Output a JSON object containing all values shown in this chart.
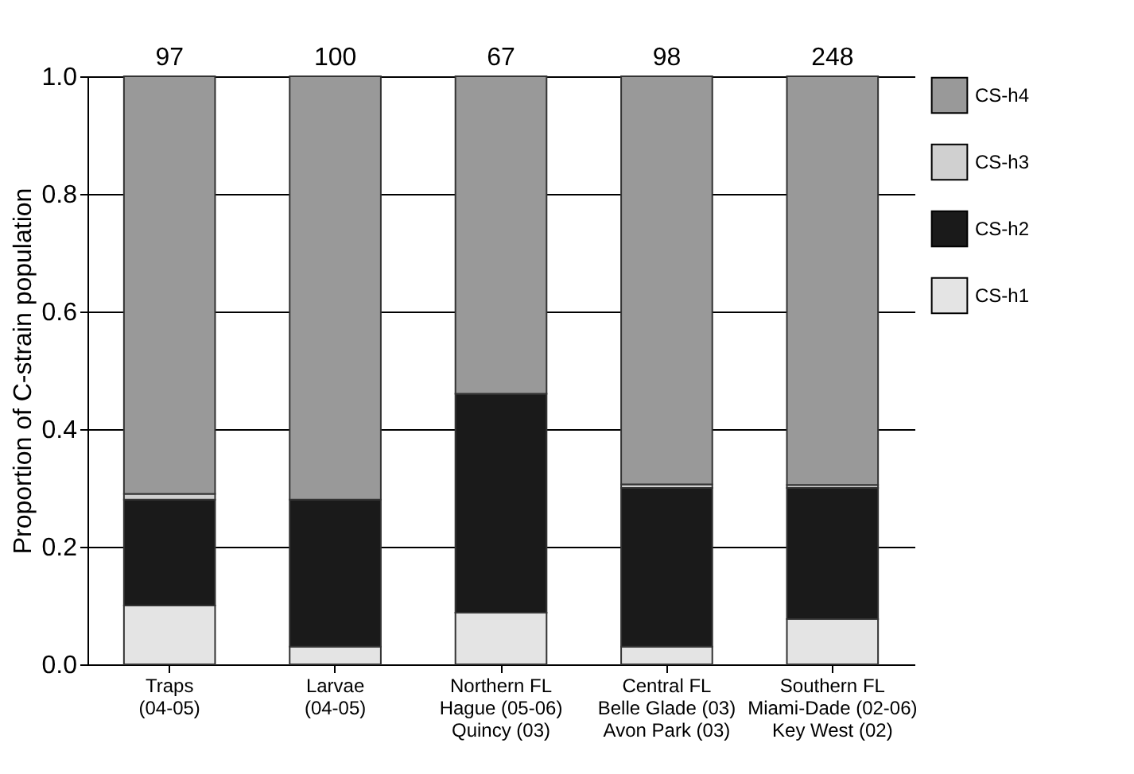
{
  "chart_data": {
    "type": "bar",
    "stacked": true,
    "ylabel": "Proportion of C-strain population",
    "categories": [
      "Traps\n(04-05)",
      "Larvae\n(04-05)",
      "Northern FL\nHague (05-06)\nQuincy (03)",
      "Central FL\nBelle Glade (03)\nAvon Park (03)",
      "Southern FL\nMiami-Dade (02-06)\nKey West (02)"
    ],
    "series": [
      {
        "name": "CS-h1",
        "color": "#e4e4e4",
        "values": [
          0.1,
          0.03,
          0.088,
          0.03,
          0.077
        ]
      },
      {
        "name": "CS-h2",
        "color": "#1a1a1a",
        "values": [
          0.18,
          0.25,
          0.372,
          0.27,
          0.223
        ]
      },
      {
        "name": "CS-h3",
        "color": "#d0d0d0",
        "values": [
          0.01,
          0,
          0,
          0.006,
          0.005
        ]
      },
      {
        "name": "CS-h4",
        "color": "#999999",
        "values": [
          0.71,
          0.72,
          0.54,
          0.694,
          0.695
        ]
      }
    ],
    "annotations": [
      {
        "text": "97",
        "x": "Traps\n(04-05)",
        "y": 1
      },
      {
        "text": "100",
        "x": "Larvae\n(04-05)",
        "y": 1
      },
      {
        "text": "67",
        "x": "Northern FL\nHague (05-06)\nQuincy (03)",
        "y": 1
      },
      {
        "text": "98",
        "x": "Central FL\nBelle Glade (03)\nAvon Park (03)",
        "y": 1
      },
      {
        "text": "248",
        "x": "Southern FL\nMiami-Dade (02-06)\nKey West (02)",
        "y": 1
      }
    ],
    "ylim": [
      0,
      1
    ],
    "yticks": [
      {
        "value": 0,
        "label": "0.0"
      },
      {
        "value": 0.2,
        "label": "0.2"
      },
      {
        "value": 0.4,
        "label": "0.4"
      },
      {
        "value": 0.6,
        "label": "0.6"
      },
      {
        "value": 0.8,
        "label": "0.8"
      },
      {
        "value": 1,
        "label": "1.0"
      }
    ],
    "grid": "y",
    "legend": "right"
  }
}
